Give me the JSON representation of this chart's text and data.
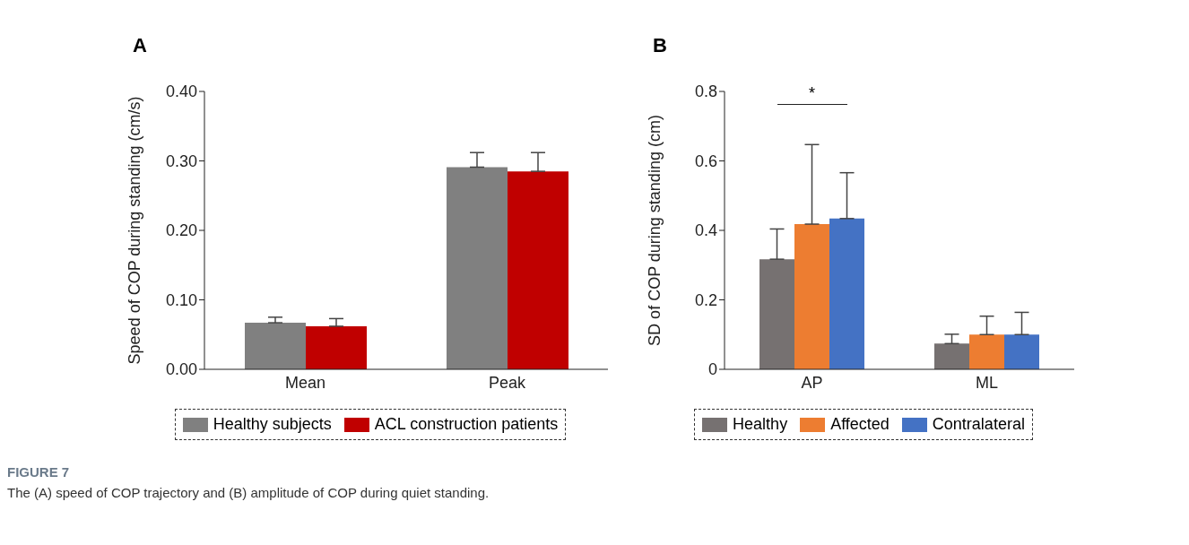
{
  "chart_data": [
    {
      "type": "bar",
      "title": "A",
      "ylabel": "Speed of COP during standing (cm/s)",
      "categories": [
        "Mean",
        "Peak"
      ],
      "series": [
        {
          "name": "Healthy subjects",
          "color": "#808080",
          "values": [
            0.067,
            0.291
          ],
          "errors": [
            [
              0.067,
              0.075
            ],
            [
              0.291,
              0.312
            ]
          ]
        },
        {
          "name": "ACL construction patients",
          "color": "#c00000",
          "values": [
            0.062,
            0.285
          ],
          "errors": [
            [
              0.062,
              0.073
            ],
            [
              0.285,
              0.312
            ]
          ]
        }
      ],
      "ylim": [
        0,
        0.4
      ],
      "yticks": [
        {
          "value": 0,
          "label": "0.00"
        },
        {
          "value": 0.1,
          "label": "0.10"
        },
        {
          "value": 0.2,
          "label": "0.20"
        },
        {
          "value": 0.3,
          "label": "0.30"
        },
        {
          "value": 0.4,
          "label": "0.40"
        }
      ],
      "grid": false,
      "legend": "bottom",
      "annotations": [
        "FIGURE 7",
        "The (A) speed of COP trajectory and (B) amplitude of COP during quiet standing."
      ]
    },
    {
      "type": "bar",
      "title": "B",
      "ylabel": "SD of COP during standing (cm)",
      "categories": [
        "AP",
        "ML"
      ],
      "series": [
        {
          "name": "Healthy",
          "color": "#767171",
          "values": [
            0.317,
            0.074
          ],
          "errors": [
            [
              0.317,
              0.404
            ],
            [
              0.074,
              0.101
            ]
          ]
        },
        {
          "name": "Affected",
          "color": "#ed7d31",
          "values": [
            0.418,
            0.1
          ],
          "errors": [
            [
              0.418,
              0.647
            ],
            [
              0.1,
              0.153
            ]
          ]
        },
        {
          "name": "Contralateral",
          "color": "#4472c4",
          "values": [
            0.434,
            0.1
          ],
          "errors": [
            [
              0.434,
              0.566
            ],
            [
              0.1,
              0.164
            ]
          ]
        }
      ],
      "ylim": [
        0,
        0.8
      ],
      "yticks": [
        0,
        0.2,
        0.4,
        0.6,
        0.8
      ],
      "grid": false,
      "legend": "bottom",
      "annotations": [
        "*"
      ]
    }
  ]
}
